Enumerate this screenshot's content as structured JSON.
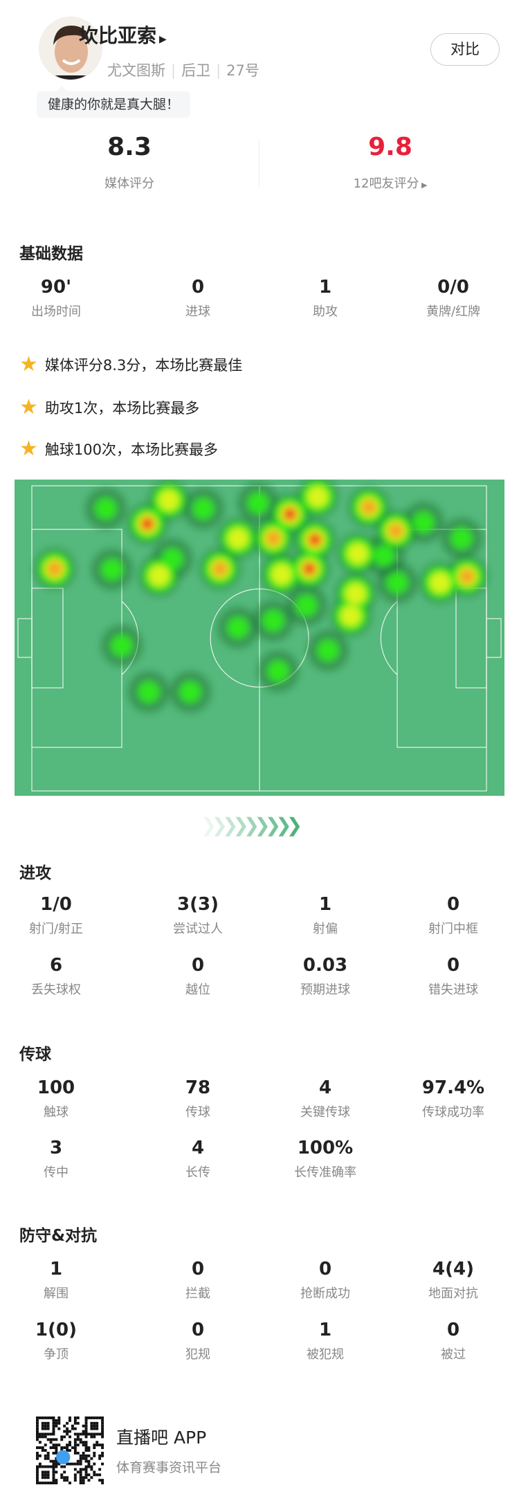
{
  "player": {
    "name": "坎比亚索",
    "team": "尤文图斯",
    "position": "后卫",
    "number": "27号",
    "motto": "健康的你就是真大腿！",
    "compare_label": "对比"
  },
  "ratings": {
    "media_value": "8.3",
    "media_label": "媒体评分",
    "fan_value": "9.8",
    "fan_label": "12吧友评分",
    "fan_color": "#e8203a"
  },
  "basic": {
    "title": "基础数据",
    "items": [
      {
        "v": "90'",
        "l": "出场时间"
      },
      {
        "v": "0",
        "l": "进球"
      },
      {
        "v": "1",
        "l": "助攻"
      },
      {
        "v": "0/0",
        "l": "黄牌/红牌"
      }
    ]
  },
  "highlights": [
    "媒体评分8.3分，本场比赛最佳",
    "助攻1次，本场比赛最多",
    "触球100次，本场比赛最多"
  ],
  "attack": {
    "title": "进攻",
    "items": [
      {
        "v": "1/0",
        "l": "射门/射正"
      },
      {
        "v": "3(3)",
        "l": "尝试过人"
      },
      {
        "v": "1",
        "l": "射偏"
      },
      {
        "v": "0",
        "l": "射门中框"
      },
      {
        "v": "6",
        "l": "丢失球权"
      },
      {
        "v": "0",
        "l": "越位"
      },
      {
        "v": "0.03",
        "l": "预期进球"
      },
      {
        "v": "0",
        "l": "错失进球"
      }
    ]
  },
  "passing": {
    "title": "传球",
    "items": [
      {
        "v": "100",
        "l": "触球"
      },
      {
        "v": "78",
        "l": "传球"
      },
      {
        "v": "4",
        "l": "关键传球"
      },
      {
        "v": "97.4%",
        "l": "传球成功率"
      },
      {
        "v": "3",
        "l": "传中"
      },
      {
        "v": "4",
        "l": "长传"
      },
      {
        "v": "100%",
        "l": "长传准确率"
      }
    ]
  },
  "defense": {
    "title": "防守&对抗",
    "items": [
      {
        "v": "1",
        "l": "解围"
      },
      {
        "v": "0",
        "l": "拦截"
      },
      {
        "v": "0",
        "l": "抢断成功"
      },
      {
        "v": "4(4)",
        "l": "地面对抗"
      },
      {
        "v": "1(0)",
        "l": "争顶"
      },
      {
        "v": "0",
        "l": "犯规"
      },
      {
        "v": "1",
        "l": "被犯规"
      },
      {
        "v": "0",
        "l": "被过"
      }
    ]
  },
  "footer": {
    "app_title": "直播吧 APP",
    "app_subtitle": "体育赛事资讯平台"
  },
  "colors": {
    "pitch": "#55b87c",
    "accent_red": "#e8203a",
    "star": "#f5b324"
  }
}
